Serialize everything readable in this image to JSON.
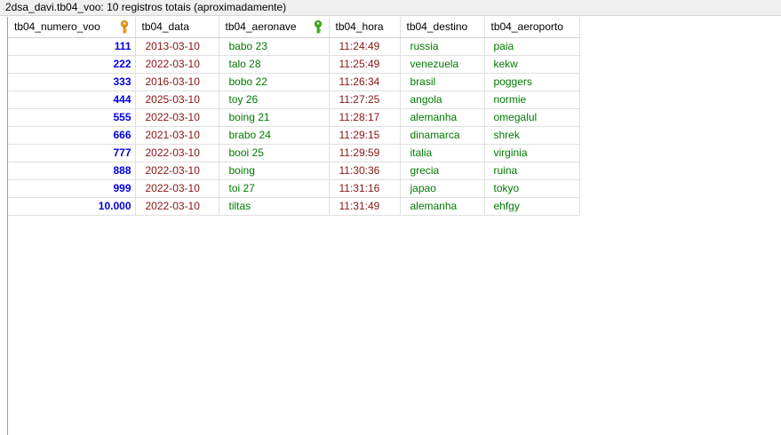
{
  "window": {
    "title": "2dsa_davi.tb04_voo: 10 registros totais (aproximadamente)"
  },
  "table": {
    "columns": [
      {
        "label": "tb04_numero_voo",
        "icon": "primary-key-icon",
        "icon_color": "#f0a020"
      },
      {
        "label": "tb04_data"
      },
      {
        "label": "tb04_aeronave",
        "icon": "foreign-key-icon",
        "icon_color": "#46b41e"
      },
      {
        "label": "tb04_hora"
      },
      {
        "label": "tb04_destino"
      },
      {
        "label": "tb04_aeroporto"
      }
    ],
    "rows": [
      [
        "111",
        "2013-03-10",
        "babo 23",
        "11:24:49",
        "russia",
        "paia"
      ],
      [
        "222",
        "2022-03-10",
        "talo 28",
        "11:25:49",
        "venezuela",
        "kekw"
      ],
      [
        "333",
        "2016-03-10",
        "bobo 22",
        "11:26:34",
        "brasil",
        "poggers"
      ],
      [
        "444",
        "2025-03-10",
        "toy 26",
        "11:27:25",
        "angola",
        "normie"
      ],
      [
        "555",
        "2022-03-10",
        "boing 21",
        "11:28:17",
        "alemanha",
        "omegalul"
      ],
      [
        "666",
        "2021-03-10",
        "brabo 24",
        "11:29:15",
        "dinamarca",
        "shrek"
      ],
      [
        "777",
        "2022-03-10",
        "booi 25",
        "11:29:59",
        "italia",
        "virginia"
      ],
      [
        "888",
        "2022-03-10",
        "boing",
        "11:30:36",
        "grecia",
        "ruina"
      ],
      [
        "999",
        "2022-03-10",
        "toi 27",
        "11:31:16",
        "japao",
        "tokyo"
      ],
      [
        "10.000",
        "2022-03-10",
        "tiltas",
        "11:31:49",
        "alemanha",
        "ehfgy"
      ]
    ]
  },
  "colors": {
    "number": "#0000e0",
    "date_time": "#8b1414",
    "text": "#007a00"
  }
}
